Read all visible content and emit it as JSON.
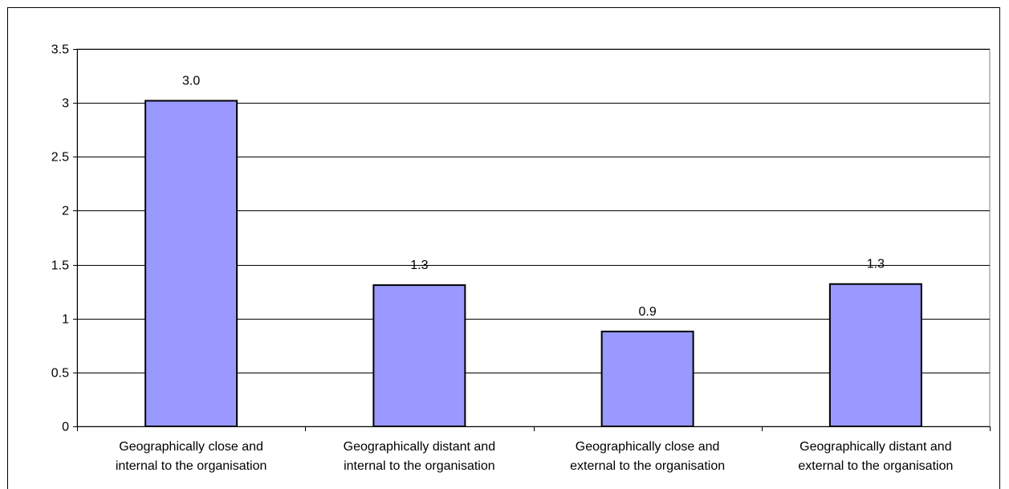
{
  "chart_data": {
    "type": "bar",
    "title": "",
    "xlabel": "",
    "ylabel": "",
    "categories": [
      [
        "Geographically close and",
        "internal to the organisation"
      ],
      [
        "Geographically distant and",
        "internal to the organisation"
      ],
      [
        "Geographically close and",
        "external to the organisation"
      ],
      [
        "Geographically distant and",
        "external to the organisation"
      ]
    ],
    "values": [
      3.02,
      1.31,
      0.88,
      1.32
    ],
    "data_labels": [
      "3.0",
      "1.3",
      "0.9",
      "1.3"
    ],
    "ylim": [
      0,
      3.5
    ],
    "yticks": [
      "0",
      "0.5",
      "1",
      "1.5",
      "2",
      "2.5",
      "3",
      "3.5"
    ],
    "grid": true,
    "legend": "none",
    "colors": {
      "bar_fill": "#9999FF",
      "bar_stroke": "#000000",
      "grid": "#000000",
      "background": "#FFFFFF"
    }
  }
}
